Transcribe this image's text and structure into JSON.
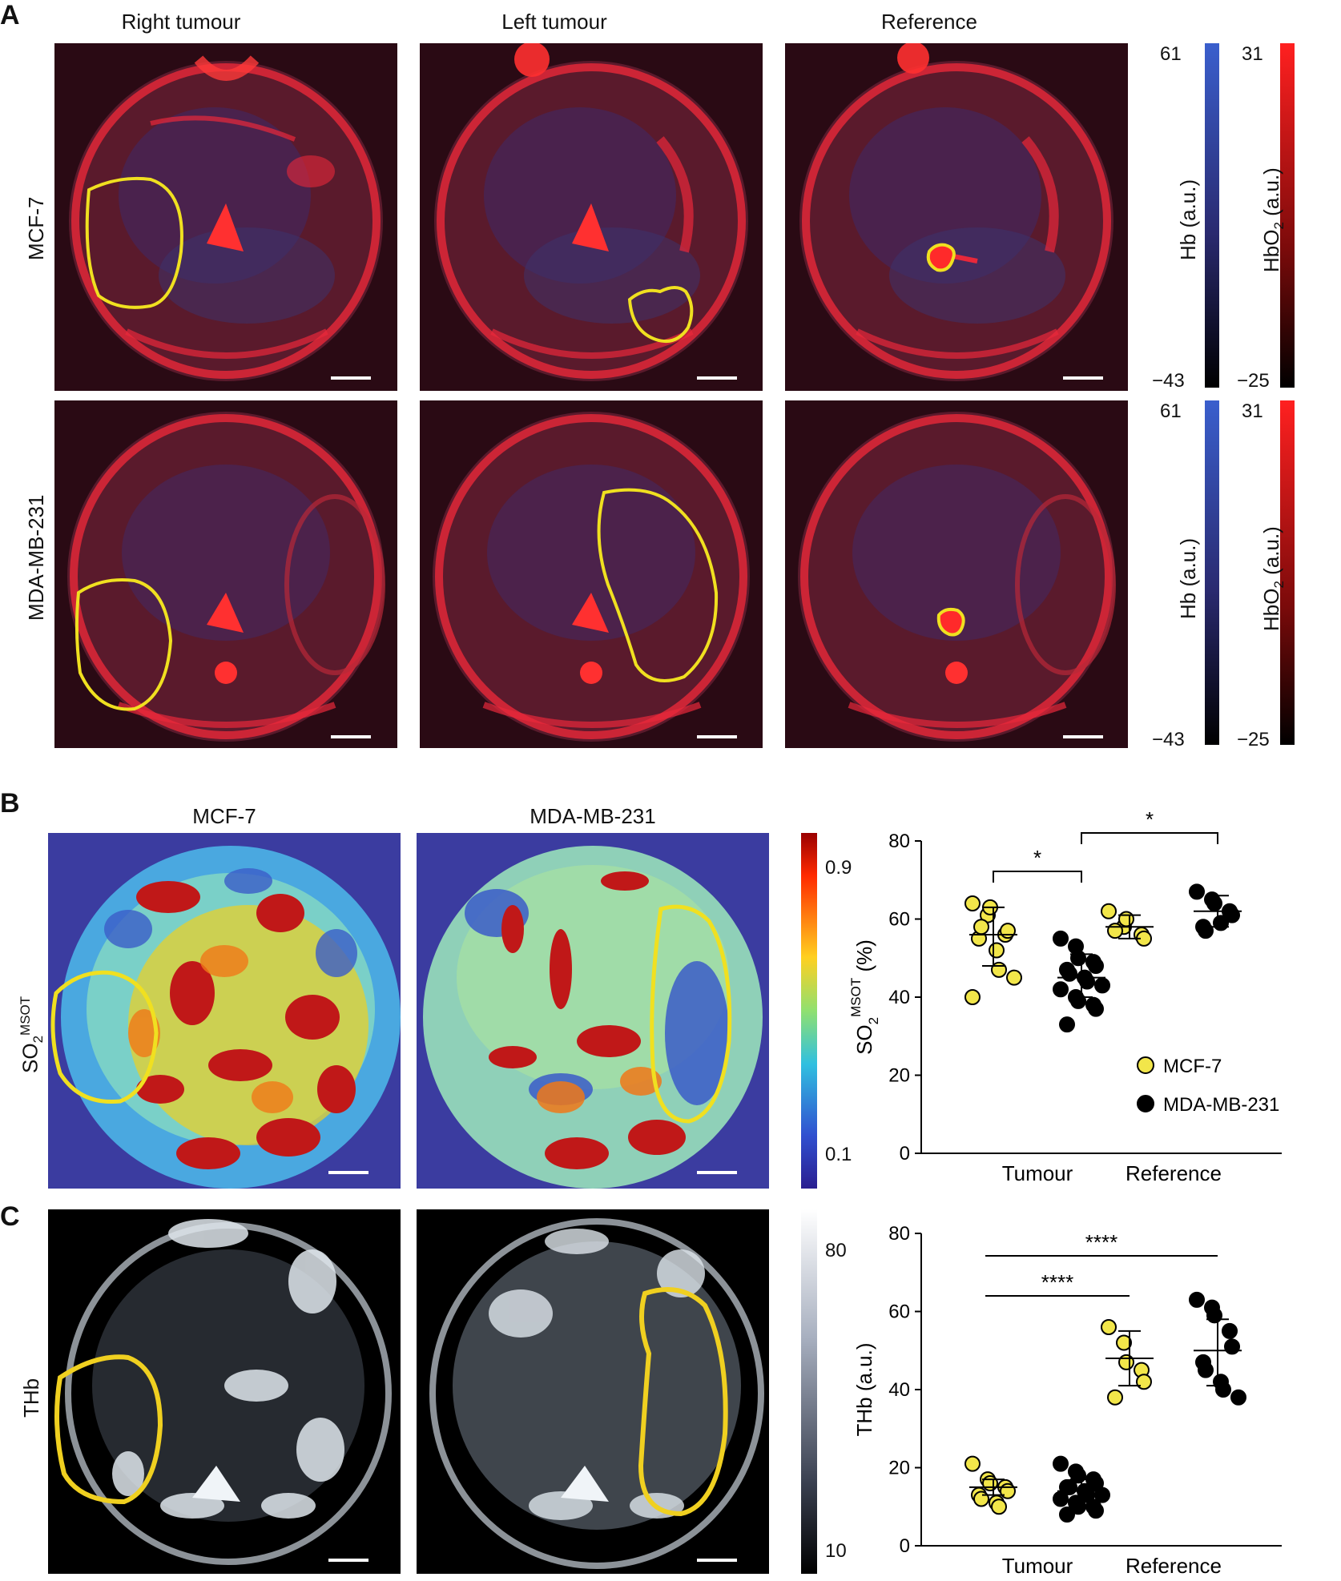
{
  "panels": {
    "a": {
      "letter": "A",
      "columns": [
        "Right tumour",
        "Left tumour",
        "Reference"
      ],
      "rows": [
        "MCF-7",
        "MDA-MB-231"
      ],
      "colorbar_hb": {
        "title": "Hb (a.u.)",
        "max": "61",
        "min": "−43",
        "color_top": "#3a5fcd",
        "color_bottom": "#000000"
      },
      "colorbar_hbo2": {
        "title_main": "HbO",
        "title_sub": "2",
        "title_unit": " (a.u.)",
        "max": "31",
        "min": "−25",
        "color_top": "#ff2020",
        "color_bottom": "#000000"
      }
    },
    "b": {
      "letter": "B",
      "columns": [
        "MCF-7",
        "MDA-MB-231"
      ],
      "row_label_main": "SO",
      "row_label_sub": "2",
      "row_label_sup": "MSOT",
      "colorbar": {
        "max": "0.9",
        "min": "0.1"
      }
    },
    "c": {
      "letter": "C",
      "row_label": "THb",
      "colorbar": {
        "max": "80",
        "min": "10"
      }
    }
  },
  "chart_data": [
    {
      "type": "scatter",
      "ylabel_main": "SO",
      "ylabel_sub": "2",
      "ylabel_sup": "MSOT",
      "ylabel_unit": " (%)",
      "ylim": [
        0,
        80
      ],
      "yticks": [
        "0",
        "20",
        "40",
        "60",
        "80"
      ],
      "categories": [
        "Tumour",
        "Reference"
      ],
      "legend": {
        "placement": "bottom-right",
        "entries": [
          "MCF-7",
          "MDA-MB-231"
        ]
      },
      "series": [
        {
          "name": "MCF-7",
          "color": "#f2e64a",
          "groups": [
            {
              "category": "Tumour",
              "values": [
                64,
                61,
                63,
                56,
                57,
                55,
                58,
                52,
                47,
                45,
                40
              ],
              "mean": 56,
              "sd_low": 48,
              "sd_high": 63
            },
            {
              "category": "Reference",
              "values": [
                62,
                58,
                60,
                56,
                55,
                57
              ],
              "mean": 58,
              "sd_low": 55,
              "sd_high": 61
            }
          ]
        },
        {
          "name": "MDA-MB-231",
          "color": "#000000",
          "groups": [
            {
              "category": "Tumour",
              "values": [
                55,
                53,
                50,
                49,
                48,
                47,
                46,
                45,
                44,
                43,
                42,
                40,
                39,
                38,
                37,
                33
              ],
              "mean": 45,
              "sd_low": 40,
              "sd_high": 51
            },
            {
              "category": "Reference",
              "values": [
                67,
                65,
                64,
                62,
                61,
                58,
                57,
                59
              ],
              "mean": 62,
              "sd_low": 58,
              "sd_high": 66
            }
          ]
        }
      ],
      "significance": [
        {
          "label": "*",
          "from": "MCF-7 Tumour",
          "to": "MDA-MB-231 Tumour"
        },
        {
          "label": "*",
          "from": "MDA-MB-231 Tumour",
          "to": "MDA-MB-231 Reference"
        }
      ]
    },
    {
      "type": "scatter",
      "ylabel": "THb (a.u.)",
      "ylim": [
        0,
        80
      ],
      "yticks": [
        "0",
        "20",
        "40",
        "60",
        "80"
      ],
      "categories": [
        "Tumour",
        "Reference"
      ],
      "series": [
        {
          "name": "MCF-7",
          "color": "#f2e64a",
          "groups": [
            {
              "category": "Tumour",
              "values": [
                21,
                17,
                16,
                15,
                14,
                13,
                12,
                11,
                10
              ],
              "mean": 15,
              "sd_low": 13,
              "sd_high": 17
            },
            {
              "category": "Reference",
              "values": [
                56,
                52,
                47,
                45,
                42,
                38
              ],
              "mean": 48,
              "sd_low": 41,
              "sd_high": 55
            }
          ]
        },
        {
          "name": "MDA-MB-231",
          "color": "#000000",
          "groups": [
            {
              "category": "Tumour",
              "values": [
                21,
                19,
                18,
                17,
                16,
                15,
                15,
                14,
                13,
                13,
                12,
                11,
                10,
                10,
                9,
                8
              ],
              "mean": 14,
              "sd_low": 10,
              "sd_high": 17
            },
            {
              "category": "Reference",
              "values": [
                63,
                61,
                59,
                55,
                51,
                47,
                45,
                42,
                40,
                38
              ],
              "mean": 50,
              "sd_low": 41,
              "sd_high": 58
            }
          ]
        }
      ],
      "significance": [
        {
          "label": "****",
          "from": "MCF-7 Tumour",
          "to": "MCF-7 Reference"
        },
        {
          "label": "****",
          "from": "MCF-7 Tumour",
          "to": "MDA-MB-231 Reference"
        }
      ]
    }
  ]
}
